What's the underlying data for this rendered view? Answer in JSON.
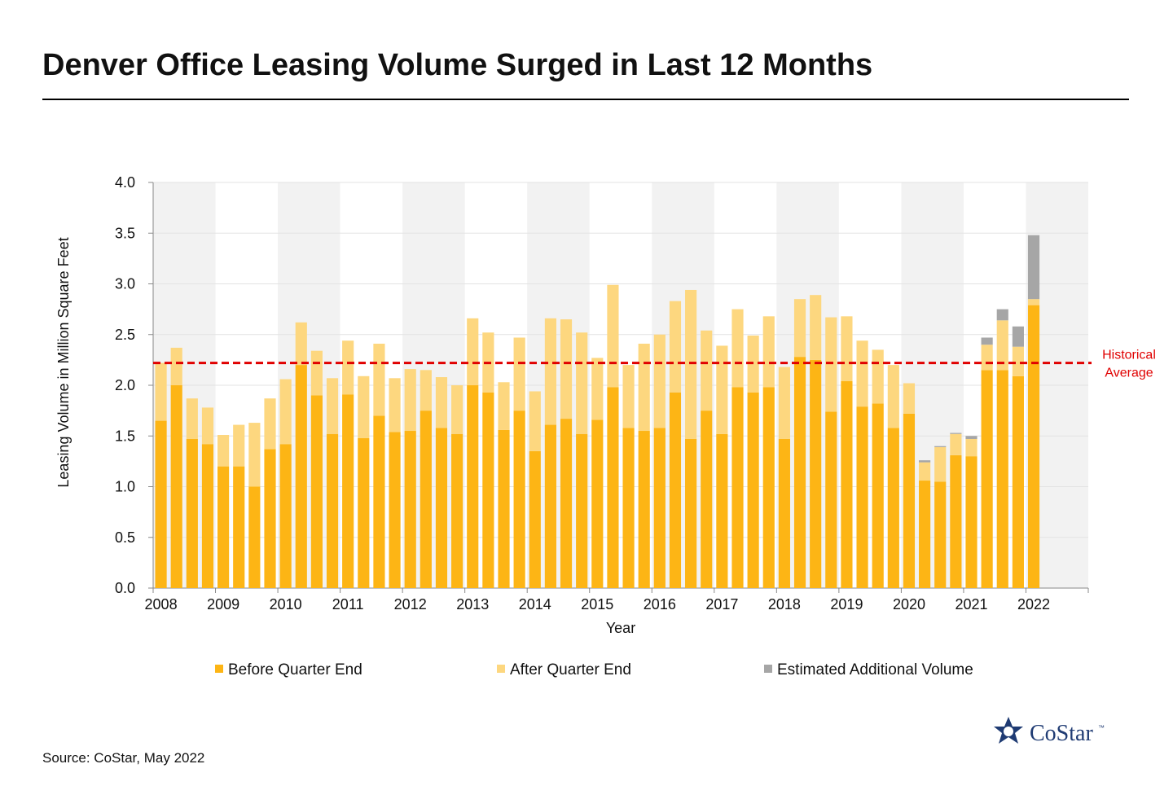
{
  "chart_data": {
    "type": "stacked_bar",
    "title": "Denver Office Leasing Volume Surged in Last 12 Months",
    "x_label": "Year",
    "y_label": "Leasing Volume  in Million Square Feet",
    "source": "Source: CoStar, May 2022",
    "logo": "CoStar",
    "logo_mark": "™",
    "categories": [
      "2008",
      null,
      null,
      null,
      "2009",
      null,
      null,
      null,
      "2010",
      null,
      null,
      null,
      "2011",
      null,
      null,
      null,
      "2012",
      null,
      null,
      null,
      "2013",
      null,
      null,
      null,
      "2014",
      null,
      null,
      null,
      "2015",
      null,
      null,
      null,
      "2016",
      null,
      null,
      null,
      "2017",
      null,
      null,
      null,
      "2018",
      null,
      null,
      null,
      "2019",
      null,
      null,
      null,
      "2020",
      null,
      null,
      null,
      "2021",
      null,
      null,
      null,
      "2022"
    ],
    "series": [
      {
        "name": "Before Quarter End",
        "color": "#FDB515",
        "values": [
          1.65,
          2.0,
          1.47,
          1.42,
          1.2,
          1.2,
          1.0,
          1.37,
          1.42,
          2.2,
          1.9,
          1.52,
          1.91,
          1.48,
          1.7,
          1.54,
          1.55,
          1.75,
          1.58,
          1.52,
          2.0,
          1.93,
          1.56,
          1.75,
          1.35,
          1.61,
          1.67,
          1.52,
          1.66,
          1.98,
          1.58,
          1.55,
          1.58,
          1.93,
          1.47,
          1.75,
          1.52,
          1.98,
          1.93,
          1.98,
          1.47,
          2.28,
          2.25,
          1.74,
          2.04,
          1.79,
          1.82,
          1.58,
          1.72,
          1.06,
          1.05,
          1.31,
          1.3,
          2.15,
          2.15,
          2.09,
          2.79
        ]
      },
      {
        "name": "After Quarter End",
        "color": "#FDD77F",
        "values": [
          0.57,
          0.37,
          0.4,
          0.36,
          0.31,
          0.41,
          0.63,
          0.5,
          0.64,
          0.42,
          0.44,
          0.55,
          0.53,
          0.61,
          0.71,
          0.53,
          0.61,
          0.4,
          0.5,
          0.48,
          0.66,
          0.59,
          0.47,
          0.72,
          0.59,
          1.05,
          0.98,
          1.0,
          0.61,
          1.01,
          0.62,
          0.86,
          0.92,
          0.9,
          1.47,
          0.79,
          0.87,
          0.77,
          0.56,
          0.7,
          0.71,
          0.57,
          0.64,
          0.93,
          0.64,
          0.65,
          0.53,
          0.62,
          0.3,
          0.18,
          0.34,
          0.21,
          0.17,
          0.25,
          0.49,
          0.29,
          0.06
        ]
      },
      {
        "name": "Estimated Additional Volume",
        "color": "#A6A6A6",
        "values": [
          null,
          null,
          null,
          null,
          null,
          null,
          null,
          null,
          null,
          null,
          null,
          null,
          null,
          null,
          null,
          null,
          null,
          null,
          null,
          null,
          null,
          null,
          null,
          null,
          null,
          null,
          null,
          null,
          null,
          null,
          null,
          null,
          null,
          null,
          null,
          null,
          null,
          null,
          null,
          null,
          null,
          null,
          null,
          null,
          null,
          null,
          null,
          null,
          null,
          0.02,
          0.01,
          0.01,
          0.03,
          0.07,
          0.11,
          0.2,
          0.63
        ]
      }
    ],
    "ylim": [
      0,
      4
    ],
    "yticks": [
      {
        "value": 0,
        "label": "0.0"
      },
      0.5,
      {
        "value": 1,
        "label": "1.0"
      },
      1.5,
      {
        "value": 2,
        "label": "2.0"
      },
      2.5,
      {
        "value": 3,
        "label": "3.0"
      },
      3.5,
      {
        "value": 4,
        "label": "4.0"
      }
    ],
    "grid": true,
    "reference_line": {
      "value": 2.22,
      "color": "#E00000",
      "label": [
        "Historical",
        "Average"
      ]
    }
  }
}
